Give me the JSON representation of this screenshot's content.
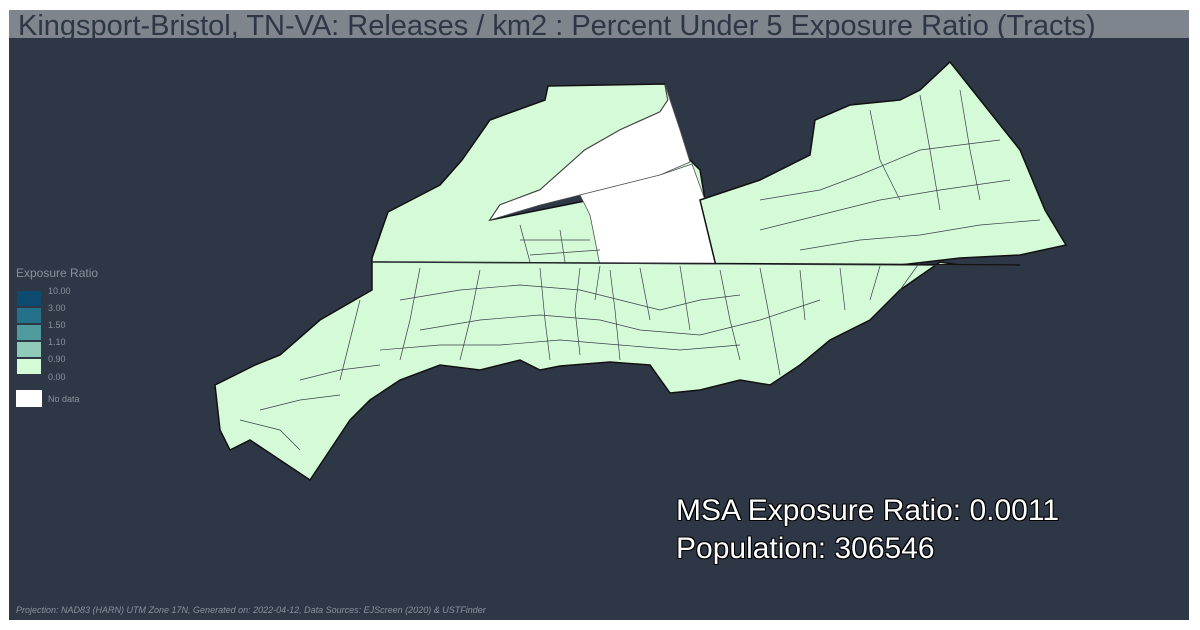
{
  "title": "Kingsport-Bristol, TN-VA: Releases / km2 : Percent Under 5 Exposure Ratio (Tracts)",
  "legend": {
    "title": "Exposure Ratio",
    "items": [
      {
        "label": "10.00",
        "color": "#0d4a70"
      },
      {
        "label": "3.00",
        "color": "#26718a"
      },
      {
        "label": "1.50",
        "color": "#4f9b9d"
      },
      {
        "label": "1.10",
        "color": "#8fcbb8"
      },
      {
        "label": "0.90",
        "color": "#d4fad8"
      },
      {
        "label": "0.00",
        "color": "#d4fad8"
      }
    ],
    "no_data_label": "No data",
    "no_data_color": "#ffffff"
  },
  "stats": {
    "exposure_ratio": "MSA Exposure Ratio: 0.0011",
    "population": "Population: 306546"
  },
  "footer": "Projection: NAD83 (HARN) UTM Zone 17N, Generated on: 2022-04-12, Data Sources: EJScreen (2020) & USTFinder",
  "colors": {
    "background": "#2e3746",
    "title_bar": "#7f858d",
    "tract_fill": "#d4fad8",
    "tract_stroke": "#3a3f48"
  }
}
